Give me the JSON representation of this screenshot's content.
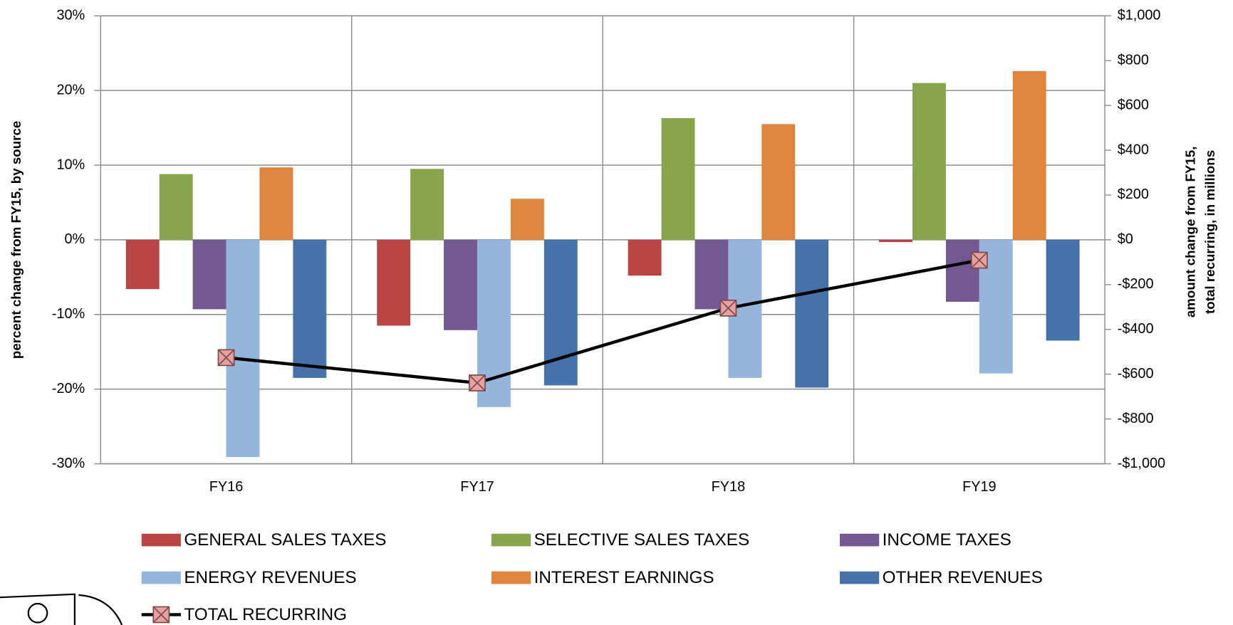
{
  "chart_data": {
    "type": "bar",
    "categories": [
      "FY16",
      "FY17",
      "FY18",
      "FY19"
    ],
    "y_label": "percent change from FY15, by source",
    "y2_label": [
      "amount change from FY15,",
      "total recurring, in millions"
    ],
    "ylim": [
      -30,
      30
    ],
    "yticks": [
      {
        "value": -30,
        "label": "-30%"
      },
      {
        "value": -20,
        "label": "-20%"
      },
      {
        "value": -10,
        "label": "-10%"
      },
      {
        "value": 0,
        "label": "0%"
      },
      {
        "value": 10,
        "label": "10%"
      },
      {
        "value": 20,
        "label": "20%"
      },
      {
        "value": 30,
        "label": "30%"
      }
    ],
    "y2lim": [
      -1000,
      1000
    ],
    "y2ticks": [
      {
        "value": -1000,
        "label": "-$1,000"
      },
      {
        "value": -800,
        "label": "-$800"
      },
      {
        "value": -600,
        "label": "-$600"
      },
      {
        "value": -400,
        "label": "-$400"
      },
      {
        "value": -200,
        "label": "-$200"
      },
      {
        "value": 0,
        "label": "$0"
      },
      {
        "value": 200,
        "label": "$200"
      },
      {
        "value": 400,
        "label": "$400"
      },
      {
        "value": 600,
        "label": "$600"
      },
      {
        "value": 800,
        "label": "$800"
      },
      {
        "value": 1000,
        "label": "$1,000"
      }
    ],
    "grid": true,
    "series": [
      {
        "name": "GENERAL SALES TAXES",
        "color": "#b94644",
        "values": [
          -6.6,
          -11.5,
          -4.8,
          -0.3
        ]
      },
      {
        "name": "SELECTIVE SALES TAXES",
        "color": "#87a64b",
        "values": [
          8.8,
          9.5,
          16.3,
          21.0
        ]
      },
      {
        "name": "INCOME TAXES",
        "color": "#735891",
        "values": [
          -9.3,
          -12.1,
          -9.3,
          -8.3
        ]
      },
      {
        "name": "ENERGY REVENUES",
        "color": "#96b5dc",
        "values": [
          -29.1,
          -22.4,
          -18.5,
          -17.9
        ]
      },
      {
        "name": "INTEREST EARNINGS",
        "color": "#df853e",
        "values": [
          9.7,
          5.5,
          15.5,
          22.6
        ]
      },
      {
        "name": "OTHER REVENUES",
        "color": "#4573a9",
        "values": [
          -18.5,
          -19.5,
          -19.8,
          -13.5
        ]
      },
      {
        "name": "TOTAL RECURRING",
        "type": "line",
        "axis": "y2",
        "color": "#000000",
        "marker_color": "#e8a0a0",
        "values": [
          -526,
          -639,
          -305,
          -91
        ]
      }
    ]
  }
}
